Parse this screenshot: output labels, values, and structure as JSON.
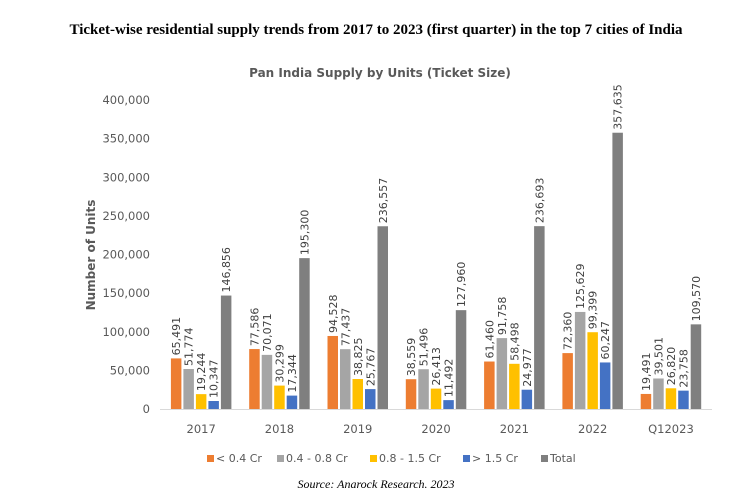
{
  "caption": "Ticket-wise residential supply trends from 2017 to 2023 (first quarter) in the top 7 cities of India",
  "source": "Source: Anarock Research. 2023",
  "chart_data": {
    "type": "bar",
    "title": "Pan India Supply by Units (Ticket Size)",
    "xlabel": "",
    "ylabel": "Number of Units",
    "ylim": [
      0,
      400000
    ],
    "yticks": [
      0,
      50000,
      100000,
      150000,
      200000,
      250000,
      300000,
      350000,
      400000
    ],
    "ytick_labels": [
      "0",
      "50,000",
      "100,000",
      "150,000",
      "200,000",
      "250,000",
      "300,000",
      "350,000",
      "400,000"
    ],
    "grid": false,
    "legend_position": "bottom",
    "categories": [
      "2017",
      "2018",
      "2019",
      "2020",
      "2021",
      "2022",
      "Q12023"
    ],
    "series": [
      {
        "name": "< 0.4 Cr",
        "color": "#ED7D31",
        "values": [
          65491,
          77586,
          94528,
          38559,
          61460,
          72360,
          19491
        ],
        "labels": [
          "65,491",
          "77,586",
          "94,528",
          "38,559",
          "61,460",
          "72,360",
          "19,491"
        ]
      },
      {
        "name": "0.4 - 0.8 Cr",
        "color": "#A5A5A5",
        "values": [
          51774,
          70071,
          77437,
          51496,
          91758,
          125629,
          39501
        ],
        "labels": [
          "51,774",
          "70,071",
          "77,437",
          "51,496",
          "91,758",
          "125,629",
          "39,501"
        ]
      },
      {
        "name": "0.8 - 1.5 Cr",
        "color": "#FFC000",
        "values": [
          19244,
          30299,
          38825,
          26413,
          58498,
          99399,
          26820
        ],
        "labels": [
          "19,244",
          "30,299",
          "38,825",
          "26,413",
          "58,498",
          "99,399",
          "26,820"
        ]
      },
      {
        "name": "> 1.5 Cr",
        "color": "#4472C4",
        "values": [
          10347,
          17344,
          25767,
          11492,
          24977,
          60247,
          23758
        ],
        "labels": [
          "10,347",
          "17,344",
          "25,767",
          "11,492",
          "24,977",
          "60,247",
          "23,758"
        ]
      },
      {
        "name": "Total",
        "color": "#7F7F7F",
        "values": [
          146856,
          195300,
          236557,
          127960,
          236693,
          357635,
          109570
        ],
        "labels": [
          "146,856",
          "195,300",
          "236,557",
          "127,960",
          "236,693",
          "357,635",
          "109,570"
        ]
      }
    ]
  }
}
